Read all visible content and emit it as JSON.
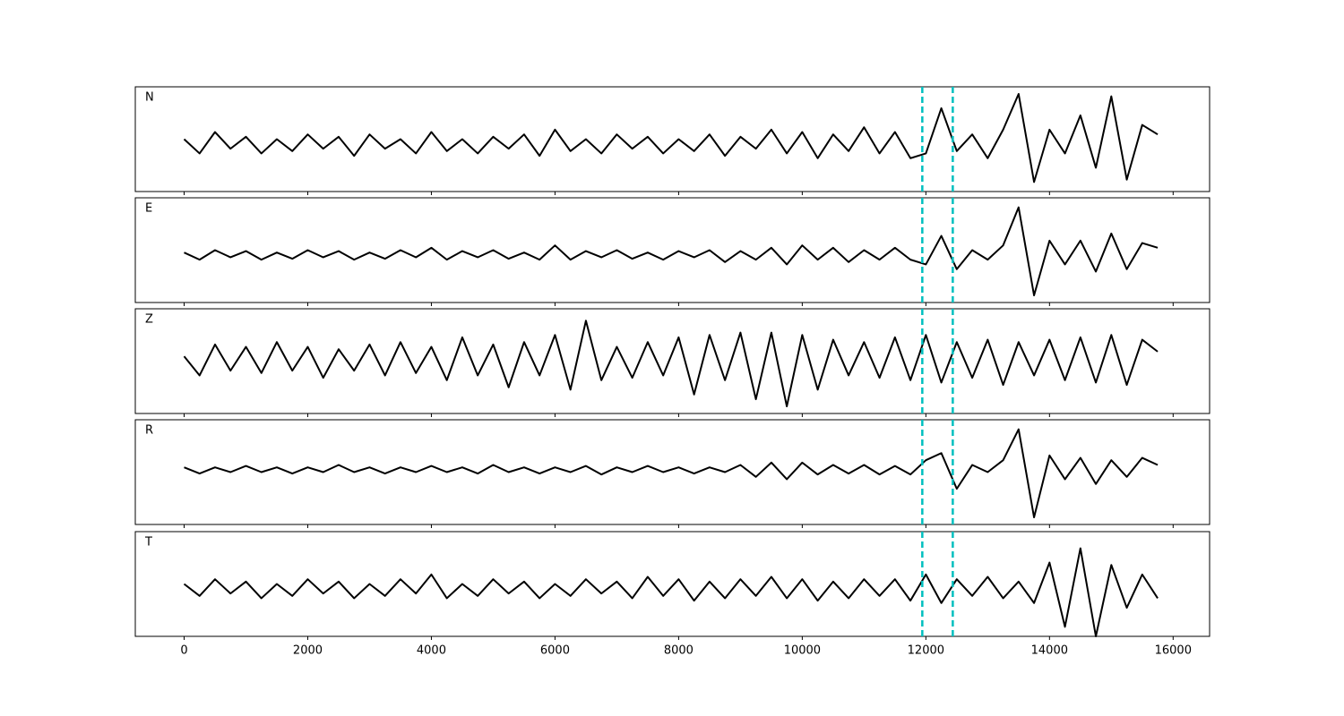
{
  "chart_data": {
    "type": "line",
    "x": [
      0,
      250,
      500,
      750,
      1000,
      1250,
      1500,
      1750,
      2000,
      2250,
      2500,
      2750,
      3000,
      3250,
      3500,
      3750,
      4000,
      4250,
      4500,
      4750,
      5000,
      5250,
      5500,
      5750,
      6000,
      6250,
      6500,
      6750,
      7000,
      7250,
      7500,
      7750,
      8000,
      8250,
      8500,
      8750,
      9000,
      9250,
      9500,
      9750,
      10000,
      10250,
      10500,
      10750,
      11000,
      11250,
      11500,
      11750,
      12000,
      12250,
      12500,
      12750,
      13000,
      13250,
      13500,
      13750,
      14000,
      14250,
      14500,
      14750,
      15000,
      15250,
      15500,
      15750
    ],
    "xlim": [
      -790,
      16590
    ],
    "xticks": [
      0,
      2000,
      4000,
      6000,
      8000,
      10000,
      12000,
      14000,
      16000
    ],
    "vlines": {
      "values": [
        11942,
        12435
      ],
      "color": "#00bfbf"
    },
    "series": [
      {
        "name": "N",
        "color": "#000000",
        "ylim": [
          -1,
          1.2
        ],
        "values": [
          0.1,
          -0.2,
          0.25,
          -0.1,
          0.15,
          -0.2,
          0.1,
          -0.15,
          0.2,
          -0.1,
          0.15,
          -0.25,
          0.2,
          -0.1,
          0.1,
          -0.2,
          0.25,
          -0.15,
          0.1,
          -0.2,
          0.15,
          -0.1,
          0.2,
          -0.25,
          0.3,
          -0.15,
          0.1,
          -0.2,
          0.2,
          -0.1,
          0.15,
          -0.2,
          0.1,
          -0.15,
          0.2,
          -0.25,
          0.15,
          -0.1,
          0.3,
          -0.2,
          0.25,
          -0.3,
          0.2,
          -0.15,
          0.35,
          -0.2,
          0.25,
          -0.3,
          -0.2,
          0.75,
          -0.15,
          0.2,
          -0.3,
          0.3,
          1.05,
          -0.8,
          0.3,
          -0.2,
          0.6,
          -0.5,
          1.0,
          -0.75,
          0.4,
          0.2
        ]
      },
      {
        "name": "E",
        "color": "#000000",
        "ylim": [
          -1,
          1.2
        ],
        "values": [
          0.05,
          -0.1,
          0.1,
          -0.05,
          0.08,
          -0.1,
          0.05,
          -0.08,
          0.1,
          -0.05,
          0.08,
          -0.1,
          0.05,
          -0.08,
          0.1,
          -0.05,
          0.15,
          -0.1,
          0.08,
          -0.05,
          0.1,
          -0.08,
          0.05,
          -0.1,
          0.2,
          -0.1,
          0.08,
          -0.05,
          0.1,
          -0.08,
          0.05,
          -0.1,
          0.08,
          -0.05,
          0.1,
          -0.15,
          0.08,
          -0.1,
          0.15,
          -0.2,
          0.2,
          -0.1,
          0.15,
          -0.15,
          0.1,
          -0.1,
          0.15,
          -0.1,
          -0.2,
          0.4,
          -0.3,
          0.1,
          -0.1,
          0.2,
          1.0,
          -0.85,
          0.3,
          -0.2,
          0.3,
          -0.35,
          0.45,
          -0.3,
          0.25,
          0.15
        ]
      },
      {
        "name": "Z",
        "color": "#000000",
        "ylim": [
          -1.1,
          1.1
        ],
        "values": [
          0.1,
          -0.3,
          0.35,
          -0.2,
          0.3,
          -0.25,
          0.4,
          -0.2,
          0.3,
          -0.35,
          0.25,
          -0.2,
          0.35,
          -0.3,
          0.4,
          -0.25,
          0.3,
          -0.4,
          0.5,
          -0.3,
          0.35,
          -0.55,
          0.4,
          -0.3,
          0.55,
          -0.6,
          0.85,
          -0.4,
          0.3,
          -0.35,
          0.4,
          -0.3,
          0.5,
          -0.7,
          0.55,
          -0.4,
          0.6,
          -0.8,
          0.6,
          -0.95,
          0.55,
          -0.6,
          0.45,
          -0.3,
          0.4,
          -0.35,
          0.5,
          -0.4,
          0.55,
          -0.45,
          0.4,
          -0.35,
          0.45,
          -0.5,
          0.4,
          -0.3,
          0.45,
          -0.4,
          0.5,
          -0.45,
          0.55,
          -0.5,
          0.45,
          0.2
        ]
      },
      {
        "name": "R",
        "color": "#000000",
        "ylim": [
          -1.15,
          1.05
        ],
        "values": [
          0.05,
          -0.08,
          0.05,
          -0.05,
          0.08,
          -0.05,
          0.05,
          -0.08,
          0.05,
          -0.05,
          0.1,
          -0.05,
          0.05,
          -0.08,
          0.05,
          -0.05,
          0.08,
          -0.05,
          0.05,
          -0.08,
          0.1,
          -0.05,
          0.05,
          -0.08,
          0.05,
          -0.05,
          0.08,
          -0.1,
          0.05,
          -0.05,
          0.08,
          -0.05,
          0.05,
          -0.08,
          0.05,
          -0.05,
          0.1,
          -0.15,
          0.15,
          -0.2,
          0.15,
          -0.1,
          0.1,
          -0.08,
          0.1,
          -0.1,
          0.08,
          -0.1,
          0.2,
          0.35,
          -0.4,
          0.1,
          -0.05,
          0.2,
          0.85,
          -1.0,
          0.3,
          -0.2,
          0.25,
          -0.3,
          0.2,
          -0.15,
          0.25,
          0.1
        ]
      },
      {
        "name": "T",
        "color": "#000000",
        "ylim": [
          -1,
          1.2
        ],
        "values": [
          0.1,
          -0.15,
          0.2,
          -0.1,
          0.15,
          -0.2,
          0.1,
          -0.15,
          0.2,
          -0.1,
          0.15,
          -0.2,
          0.1,
          -0.15,
          0.2,
          -0.1,
          0.3,
          -0.2,
          0.1,
          -0.15,
          0.2,
          -0.1,
          0.15,
          -0.2,
          0.1,
          -0.15,
          0.2,
          -0.1,
          0.15,
          -0.2,
          0.25,
          -0.15,
          0.2,
          -0.25,
          0.15,
          -0.2,
          0.2,
          -0.15,
          0.25,
          -0.2,
          0.2,
          -0.25,
          0.15,
          -0.2,
          0.2,
          -0.15,
          0.2,
          -0.25,
          0.3,
          -0.3,
          0.2,
          -0.15,
          0.25,
          -0.2,
          0.15,
          -0.3,
          0.55,
          -0.8,
          0.85,
          -1.0,
          0.5,
          -0.4,
          0.3,
          -0.2
        ]
      }
    ]
  }
}
